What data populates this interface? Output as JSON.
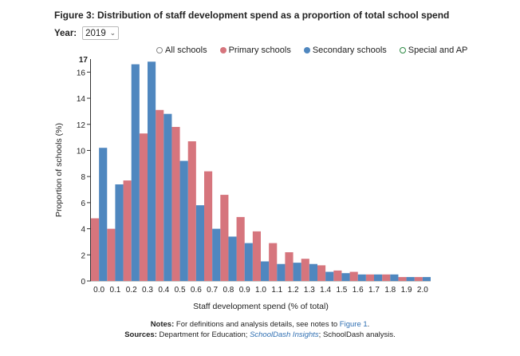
{
  "figure": {
    "title": "Figure 3: Distribution of staff development spend as a proportion of total school spend"
  },
  "filter": {
    "year_label": "Year:",
    "year_value": "2019"
  },
  "legend": {
    "items": [
      {
        "label": "All schools",
        "color": "#888888"
      },
      {
        "label": "Primary schools",
        "color": "#d6757d"
      },
      {
        "label": "Secondary schools",
        "color": "#4f87bf"
      },
      {
        "label": "Special and AP",
        "color": "#2e8b45"
      }
    ]
  },
  "notes": {
    "notes_label": "Notes:",
    "notes_text": "For definitions and analysis details, see notes to",
    "notes_link": "Figure 1",
    "notes_end": ".",
    "sources_label": "Sources:",
    "sources_text": "Department for Education;",
    "sources_link": "SchoolDash Insights",
    "sources_end": "; SchoolDash analysis."
  },
  "chart_data": {
    "type": "bar",
    "categories": [
      "0.0",
      "0.1",
      "0.2",
      "0.3",
      "0.4",
      "0.5",
      "0.6",
      "0.7",
      "0.8",
      "0.9",
      "1.0",
      "1.1",
      "1.2",
      "1.3",
      "1.4",
      "1.5",
      "1.6",
      "1.7",
      "1.8",
      "1.9",
      "2.0"
    ],
    "series": [
      {
        "name": "Primary schools",
        "color": "#d6757d",
        "values": [
          4.8,
          4.0,
          7.7,
          11.3,
          13.1,
          11.8,
          10.7,
          8.4,
          6.6,
          4.9,
          3.8,
          2.9,
          2.2,
          1.7,
          1.2,
          0.8,
          0.7,
          0.5,
          0.5,
          0.3,
          0.3
        ]
      },
      {
        "name": "Secondary schools",
        "color": "#4f87bf",
        "values": [
          10.2,
          7.4,
          16.6,
          16.8,
          12.8,
          9.2,
          5.8,
          4.0,
          3.4,
          2.9,
          1.5,
          1.3,
          1.4,
          1.3,
          0.7,
          0.6,
          0.5,
          0.5,
          0.5,
          0.3,
          0.3
        ]
      }
    ],
    "xlabel": "Staff development spend (% of total)",
    "ylabel": "Proportion of schools (%)",
    "ylim": [
      0,
      17
    ],
    "yticks": [
      0,
      2,
      4,
      6,
      8,
      10,
      12,
      14,
      16
    ],
    "ymax_label": "17",
    "grid": false
  }
}
